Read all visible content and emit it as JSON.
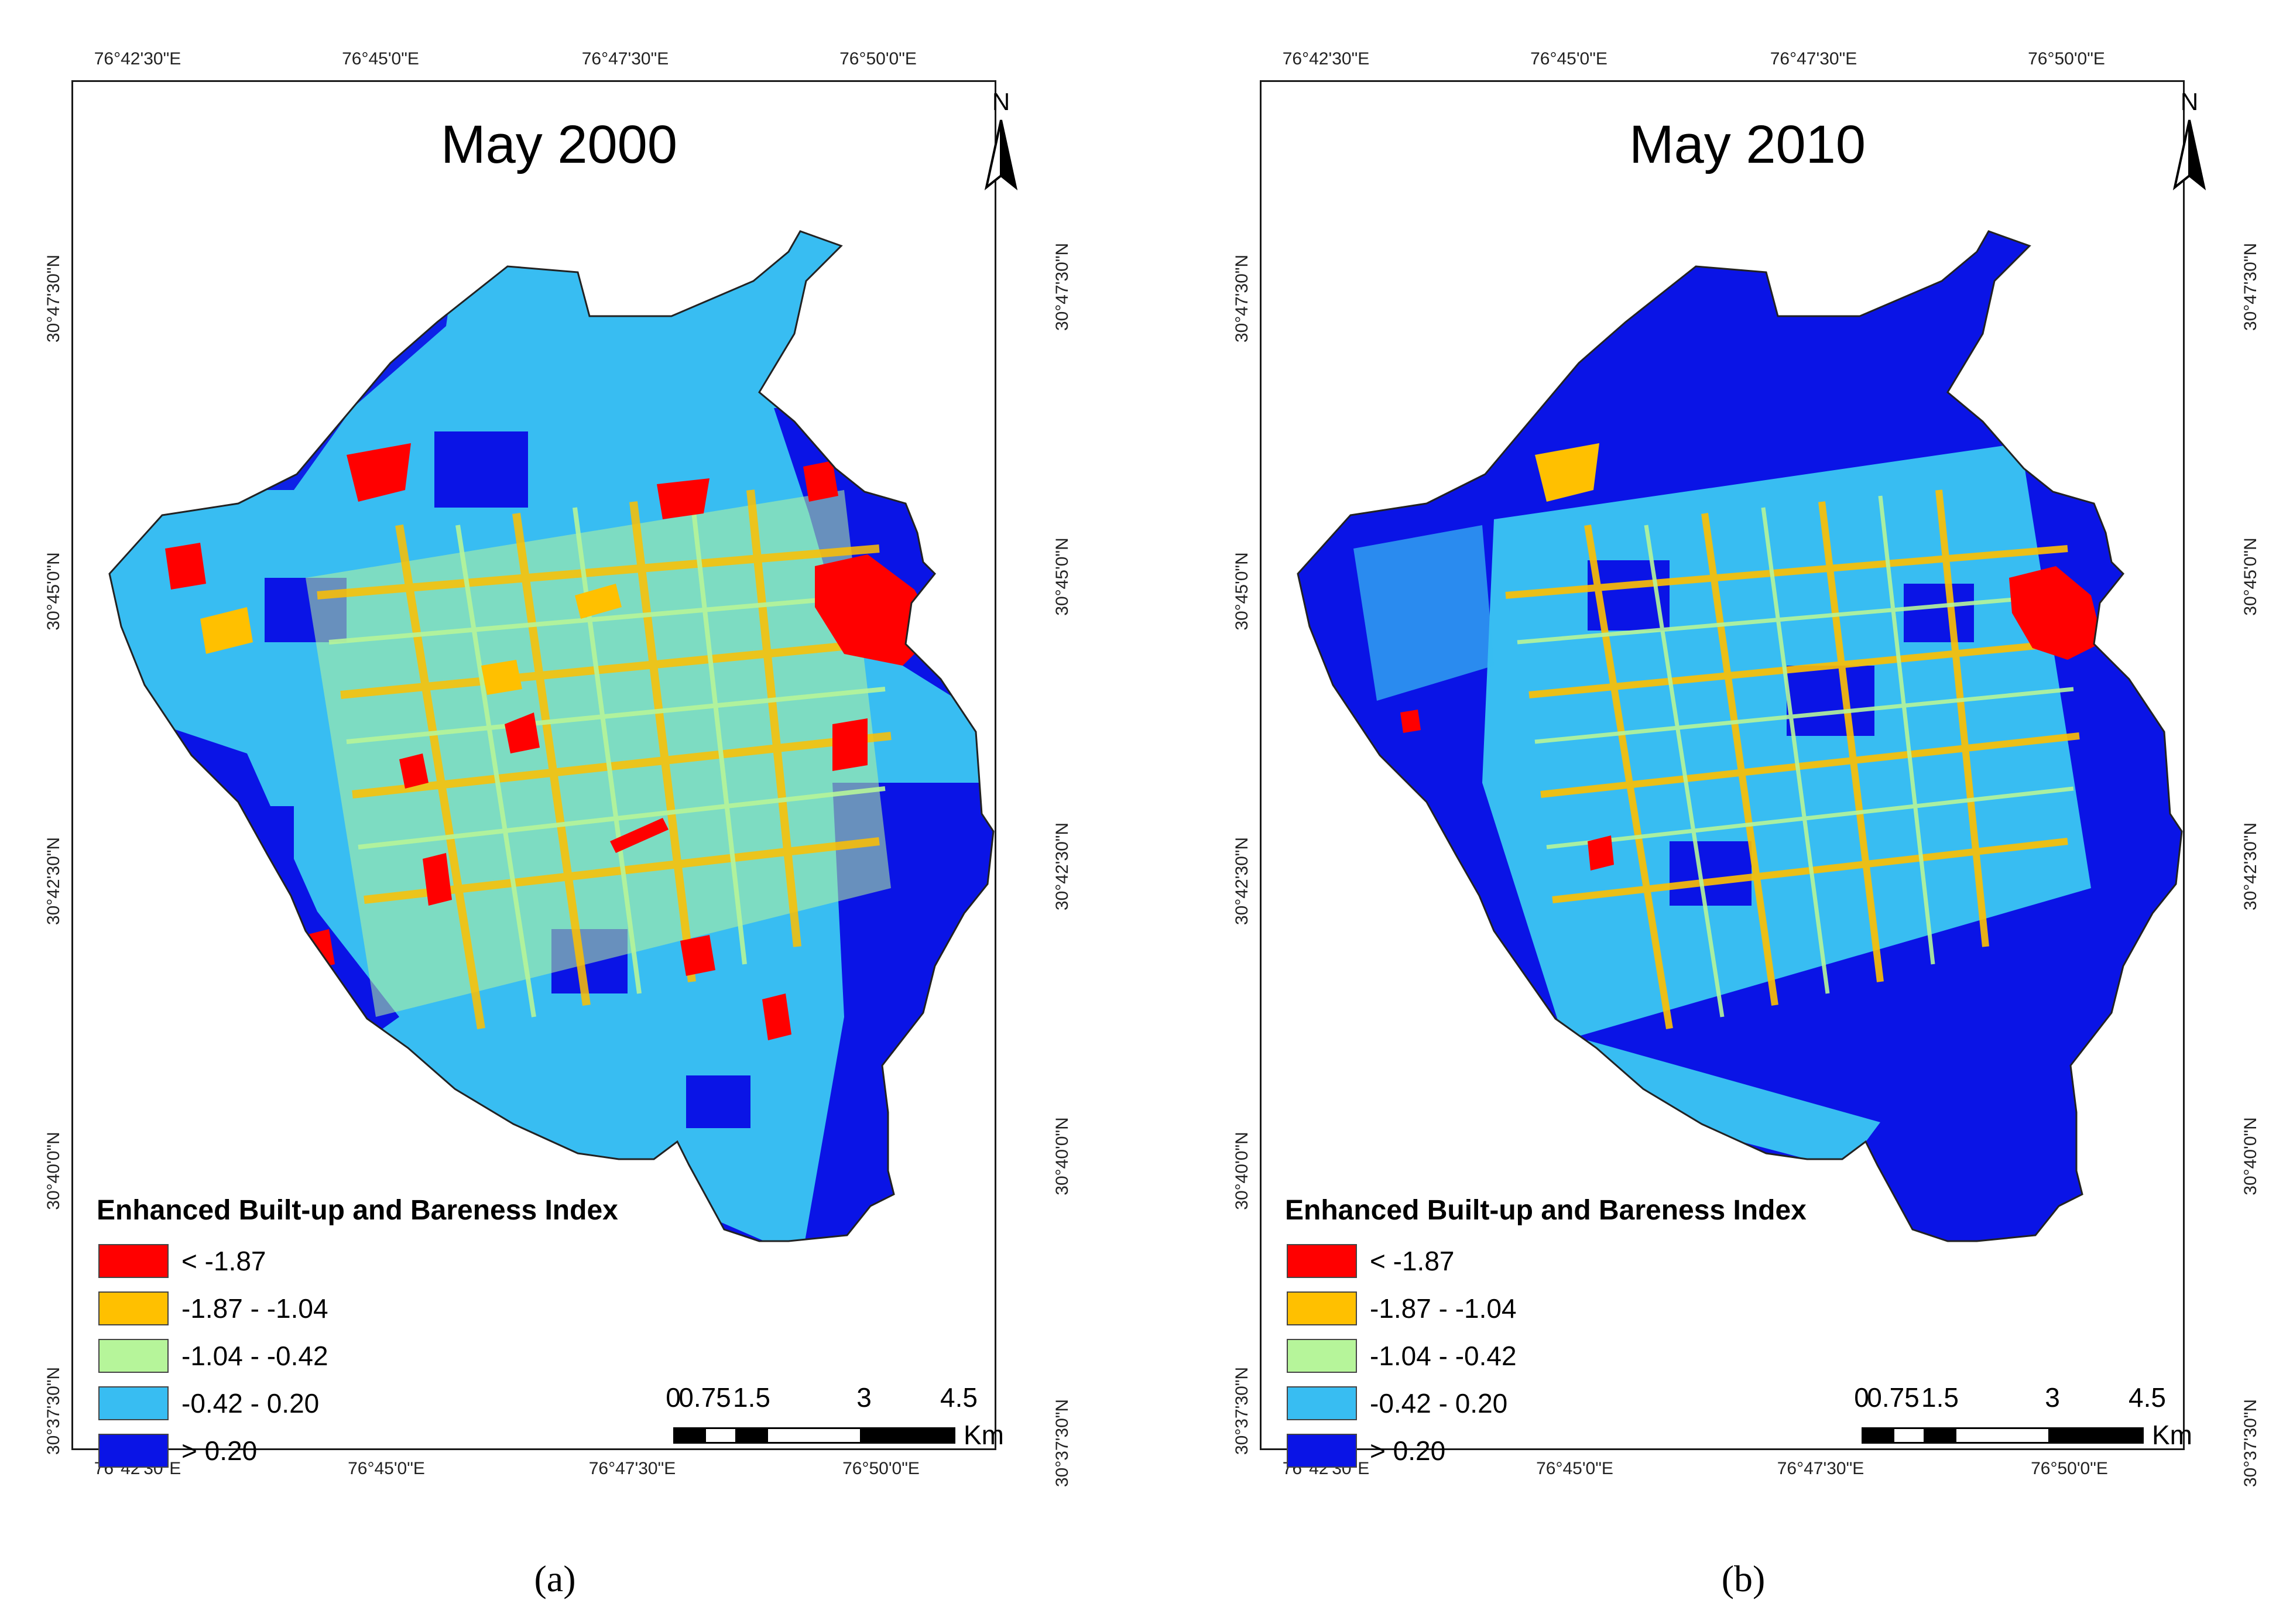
{
  "legend_title": "Enhanced Built-up and Bareness Index",
  "legend_items": [
    {
      "label": "< -1.87",
      "color": "#ff0000"
    },
    {
      "label": "-1.87 - -1.04",
      "color": "#ffc000"
    },
    {
      "label": "-1.04 - -0.42",
      "color": "#b6f59a"
    },
    {
      "label": "-0.42 - 0.20",
      "color": "#38bdf2"
    },
    {
      "label": "> 0.20",
      "color": "#0a14e6"
    }
  ],
  "longitude_labels": [
    "76°42'30\"E",
    "76°45'0\"E",
    "76°47'30\"E",
    "76°50'0\"E"
  ],
  "latitude_labels": [
    "30°47'30\"N",
    "30°45'0\"N",
    "30°42'30\"N",
    "30°40'0\"N",
    "30°37'30\"N"
  ],
  "scale_bar": {
    "ticks": [
      "0",
      "0.75",
      "1.5",
      "3",
      "4.5"
    ],
    "unit": "Km"
  },
  "north_label": "N",
  "panels": [
    {
      "title": "May 2000",
      "caption": "(a)"
    },
    {
      "title": "May 2010",
      "caption": "(b)"
    }
  ]
}
